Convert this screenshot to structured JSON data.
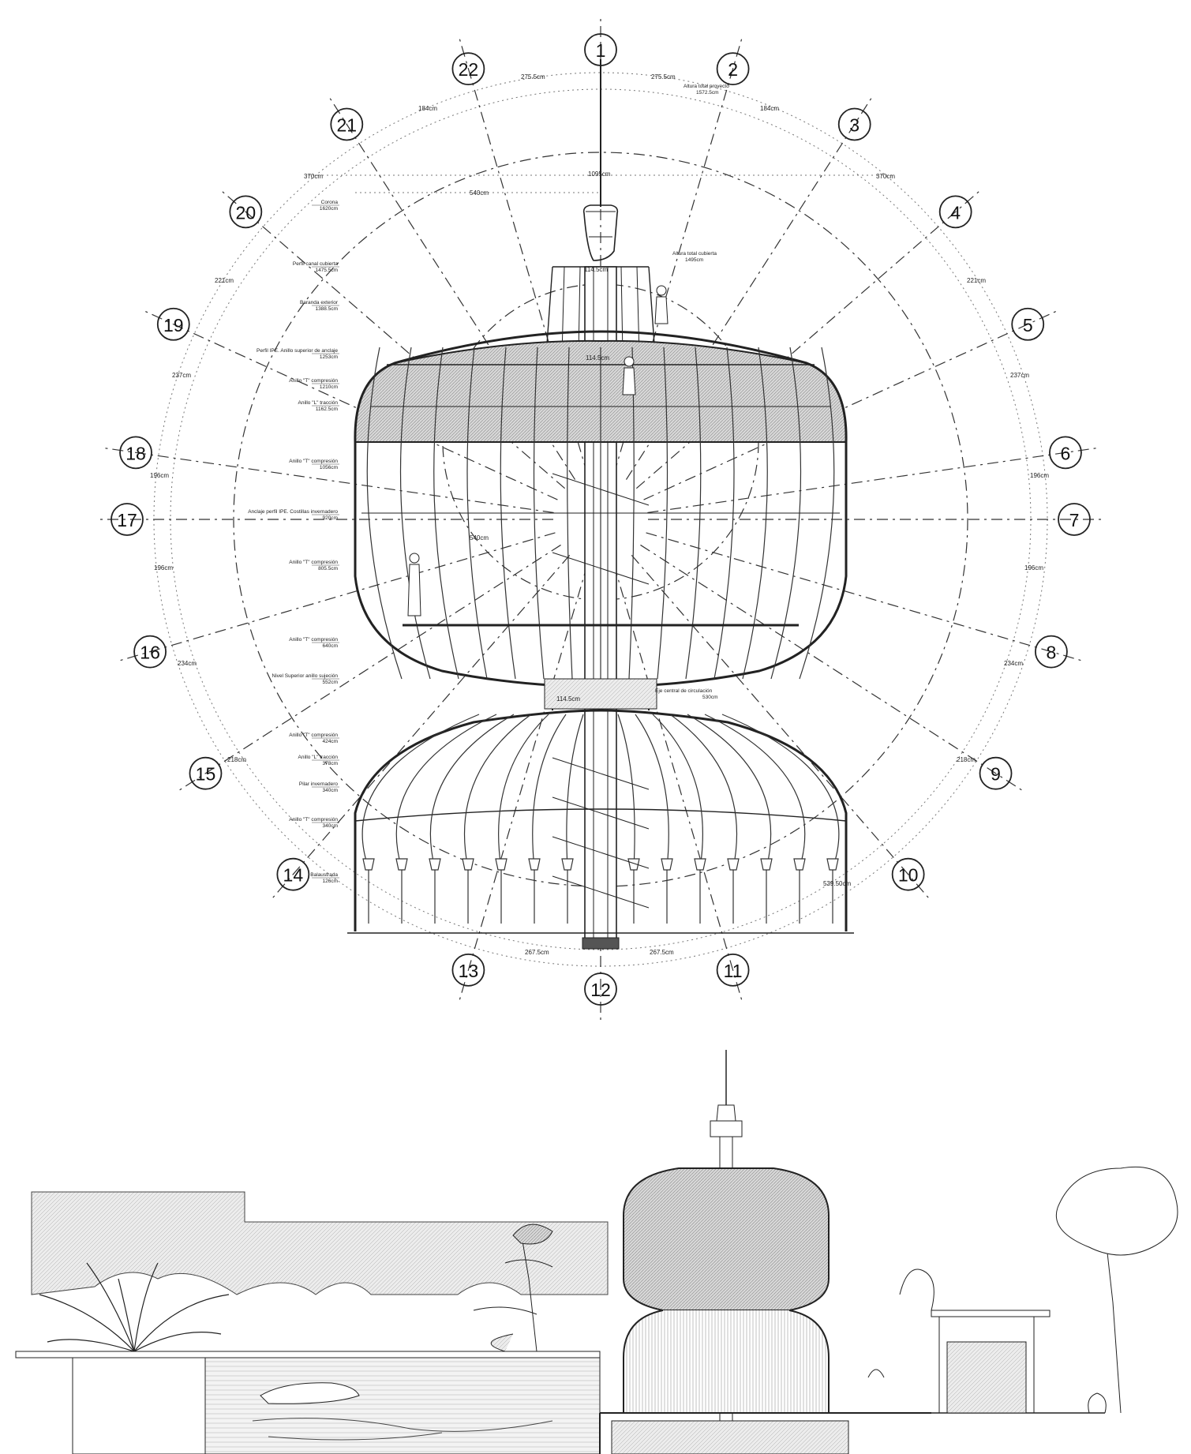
{
  "axes": [
    {
      "label": "1",
      "angle": 0
    },
    {
      "label": "2",
      "angle": 16.36
    },
    {
      "label": "3",
      "angle": 32.73
    },
    {
      "label": "4",
      "angle": 49.09
    },
    {
      "label": "5",
      "angle": 65.45
    },
    {
      "label": "6",
      "angle": 81.82
    },
    {
      "label": "7",
      "angle": 90
    },
    {
      "label": "8",
      "angle": 106.36
    },
    {
      "label": "9",
      "angle": 122.73
    },
    {
      "label": "10",
      "angle": 139.09
    },
    {
      "label": "11",
      "angle": 163.64
    },
    {
      "label": "12",
      "angle": 180
    },
    {
      "label": "13",
      "angle": 196.36
    },
    {
      "label": "14",
      "angle": 220.91
    },
    {
      "label": "15",
      "angle": 237.27
    },
    {
      "label": "16",
      "angle": 253.64
    },
    {
      "label": "17",
      "angle": 270
    },
    {
      "label": "18",
      "angle": 278.18
    },
    {
      "label": "19",
      "angle": 294.55
    },
    {
      "label": "20",
      "angle": 310.91
    },
    {
      "label": "21",
      "angle": 327.27
    },
    {
      "label": "22",
      "angle": 343.64
    }
  ],
  "dimensions": {
    "top_left": "275.5cm",
    "top_right": "275.5cm",
    "upper_left": "184cm",
    "upper_right": "184cm",
    "crown_left": "370cm",
    "crown_right": "370cm",
    "mid_left_1": "221cm",
    "mid_right_1": "221cm",
    "mid_left_2": "237cm",
    "mid_right_2": "237cm",
    "mid_left_3": "196cm",
    "mid_right_3": "196cm",
    "low_left_1": "196cm",
    "low_right_1": "196cm",
    "low_left_2": "234cm",
    "low_right_2": "234cm",
    "low_left_3": "218cm",
    "low_right_3": "218cm",
    "bottom_left": "267.5cm",
    "bottom_right": "267.5cm",
    "width_total": "1095cm",
    "width_540_top": "540cm",
    "width_540_mid": "540cm",
    "width_1145_a": "114.5cm",
    "width_1145_b": "114.5cm",
    "width_1145_c": "114.5cm",
    "base_right": "539.50cm"
  },
  "notes_left": [
    {
      "title": "Corona",
      "value": "1620cm"
    },
    {
      "title": "Perfil canal cubierta",
      "value": "1475.5cm"
    },
    {
      "title": "Baranda exterior",
      "value": "1388.5cm"
    },
    {
      "title": "Perfil IPE. Anillo superior de anclaje",
      "value": "1253cm"
    },
    {
      "title": "Anillo \"T\" compresión",
      "value": "1210cm"
    },
    {
      "title": "Anillo \"L\" tracción",
      "value": "1162.5cm"
    },
    {
      "title": "Anillo \"T\" compresión",
      "value": "1056cm"
    },
    {
      "title": "Anclaje perfil IPE. Costillas invernadero",
      "value": "920cm"
    },
    {
      "title": "Anillo \"T\" compresión",
      "value": "805.5cm"
    },
    {
      "title": "Anillo \"T\" compresión",
      "value": "640cm"
    },
    {
      "title": "Nivel Superior anillo sujeción",
      "value": "552cm"
    },
    {
      "title": "Anillo \"T\" compresión",
      "value": "424cm"
    },
    {
      "title": "Anillo \"L\" tracción",
      "value": "378cm"
    },
    {
      "title": "Pilar invernadero",
      "value": "340cm"
    },
    {
      "title": "Anillo \"T\" compresión",
      "value": "340cm"
    },
    {
      "title": "Balaustrada",
      "value": "126cm"
    }
  ],
  "notes_right": [
    {
      "title": "Altura total proyecto",
      "value": "1572.5cm"
    },
    {
      "title": "Altura total cubierta",
      "value": "1495cm"
    },
    {
      "title": "Eje central de circulación",
      "value": "530cm"
    }
  ]
}
